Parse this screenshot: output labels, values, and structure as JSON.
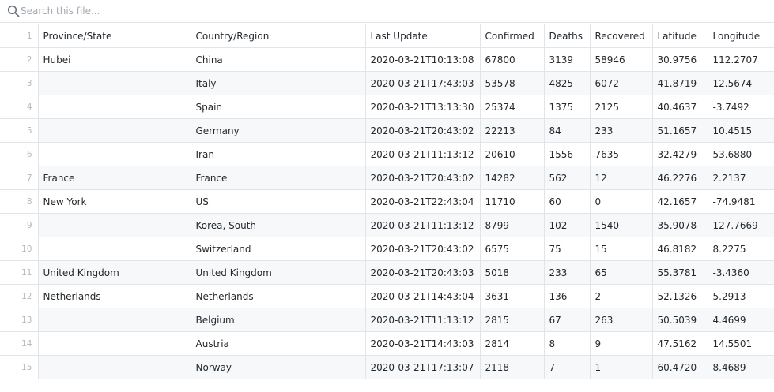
{
  "search": {
    "placeholder": "Search this file..."
  },
  "table": {
    "row_number_header": "1",
    "headers": [
      "Province/State",
      "Country/Region",
      "Last Update",
      "Confirmed",
      "Deaths",
      "Recovered",
      "Latitude",
      "Longitude"
    ],
    "rows": [
      {
        "n": "2",
        "cells": [
          "Hubei",
          "China",
          "2020-03-21T10:13:08",
          "67800",
          "3139",
          "58946",
          "30.9756",
          "112.2707"
        ]
      },
      {
        "n": "3",
        "cells": [
          "",
          "Italy",
          "2020-03-21T17:43:03",
          "53578",
          "4825",
          "6072",
          "41.8719",
          "12.5674"
        ]
      },
      {
        "n": "4",
        "cells": [
          "",
          "Spain",
          "2020-03-21T13:13:30",
          "25374",
          "1375",
          "2125",
          "40.4637",
          "-3.7492"
        ]
      },
      {
        "n": "5",
        "cells": [
          "",
          "Germany",
          "2020-03-21T20:43:02",
          "22213",
          "84",
          "233",
          "51.1657",
          "10.4515"
        ]
      },
      {
        "n": "6",
        "cells": [
          "",
          "Iran",
          "2020-03-21T11:13:12",
          "20610",
          "1556",
          "7635",
          "32.4279",
          "53.6880"
        ]
      },
      {
        "n": "7",
        "cells": [
          "France",
          "France",
          "2020-03-21T20:43:02",
          "14282",
          "562",
          "12",
          "46.2276",
          "2.2137"
        ]
      },
      {
        "n": "8",
        "cells": [
          "New York",
          "US",
          "2020-03-21T22:43:04",
          "11710",
          "60",
          "0",
          "42.1657",
          "-74.9481"
        ]
      },
      {
        "n": "9",
        "cells": [
          "",
          "Korea, South",
          "2020-03-21T11:13:12",
          "8799",
          "102",
          "1540",
          "35.9078",
          "127.7669"
        ]
      },
      {
        "n": "10",
        "cells": [
          "",
          "Switzerland",
          "2020-03-21T20:43:02",
          "6575",
          "75",
          "15",
          "46.8182",
          "8.2275"
        ]
      },
      {
        "n": "11",
        "cells": [
          "United Kingdom",
          "United Kingdom",
          "2020-03-21T20:43:03",
          "5018",
          "233",
          "65",
          "55.3781",
          "-3.4360"
        ]
      },
      {
        "n": "12",
        "cells": [
          "Netherlands",
          "Netherlands",
          "2020-03-21T14:43:04",
          "3631",
          "136",
          "2",
          "52.1326",
          "5.2913"
        ]
      },
      {
        "n": "13",
        "cells": [
          "",
          "Belgium",
          "2020-03-21T11:13:12",
          "2815",
          "67",
          "263",
          "50.5039",
          "4.4699"
        ]
      },
      {
        "n": "14",
        "cells": [
          "",
          "Austria",
          "2020-03-21T14:43:03",
          "2814",
          "8",
          "9",
          "47.5162",
          "14.5501"
        ]
      },
      {
        "n": "15",
        "cells": [
          "",
          "Norway",
          "2020-03-21T17:13:07",
          "2118",
          "7",
          "1",
          "60.4720",
          "8.4689"
        ]
      }
    ]
  }
}
